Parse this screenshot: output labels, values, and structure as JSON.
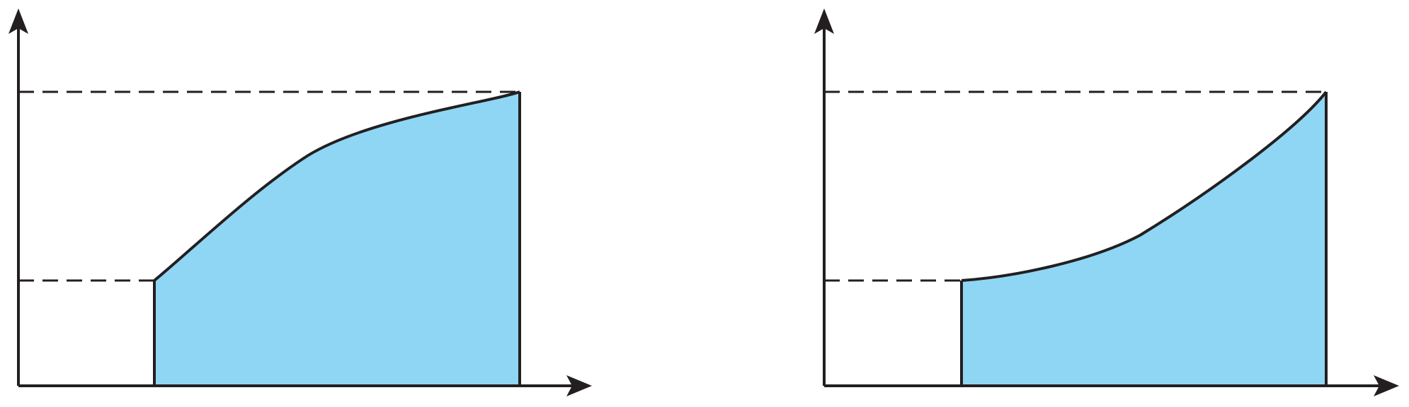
{
  "colors": {
    "fill": "#8fd6f4",
    "stroke": "#231f20",
    "background": "#ffffff"
  },
  "panels": [
    {
      "id": "left",
      "curve_shape": "concave-down"
    },
    {
      "id": "right",
      "curve_shape": "concave-up"
    }
  ]
}
